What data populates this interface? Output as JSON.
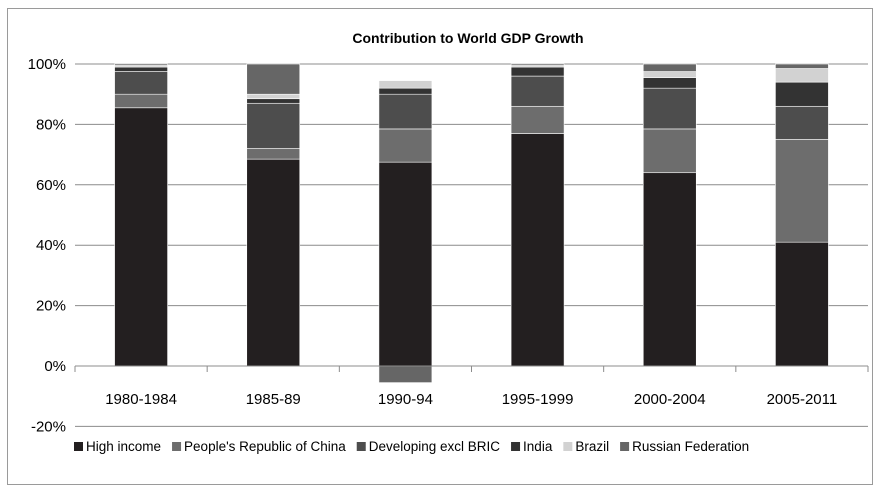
{
  "chart_data": {
    "type": "bar",
    "stacked": true,
    "title": "Contribution to World GDP Growth",
    "xlabel": "",
    "ylabel": "",
    "ylim": [
      -20,
      100
    ],
    "yticks": [
      -20,
      0,
      20,
      40,
      60,
      80,
      100
    ],
    "ytick_labels": [
      "-20%",
      "0%",
      "20%",
      "40%",
      "60%",
      "80%",
      "100%"
    ],
    "grid": true,
    "legend_position": "bottom",
    "categories": [
      "1980-1984",
      "1985-89",
      "1990-94",
      "1995-1999",
      "2000-2004",
      "2005-2011"
    ],
    "series": [
      {
        "name": "High income",
        "color": "#231f20",
        "values": [
          85.5,
          68.5,
          67.5,
          77.0,
          64.0,
          41.0
        ]
      },
      {
        "name": "People's Republic of China",
        "color": "#6d6d6d",
        "values": [
          4.5,
          3.5,
          11.0,
          9.0,
          14.5,
          34.0
        ]
      },
      {
        "name": "Developing excl BRIC",
        "color": "#4d4d4d",
        "values": [
          7.5,
          15.0,
          11.5,
          10.0,
          13.5,
          11.0
        ]
      },
      {
        "name": "India",
        "color": "#333333",
        "values": [
          1.5,
          1.5,
          2.0,
          3.0,
          3.5,
          8.0
        ]
      },
      {
        "name": "Brazil",
        "color": "#d2d2d2",
        "values": [
          0.5,
          1.5,
          2.5,
          0.5,
          2.0,
          4.5
        ]
      },
      {
        "name": "Russian Federation",
        "color": "#666666",
        "values": [
          0.5,
          10.0,
          -5.5,
          0.5,
          2.5,
          1.5
        ]
      }
    ]
  }
}
